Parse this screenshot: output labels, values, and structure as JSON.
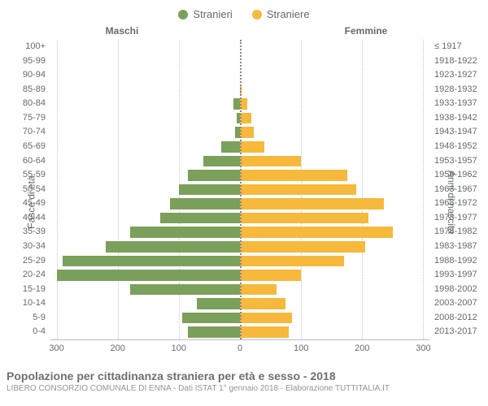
{
  "legend": {
    "male": {
      "label": "Stranieri",
      "color": "#7ba05b"
    },
    "female": {
      "label": "Straniere",
      "color": "#f6b93b"
    }
  },
  "column_headers": {
    "left": "Maschi",
    "right": "Femmine"
  },
  "axis_labels": {
    "left": "Fasce di età",
    "right": "Anni di nascita"
  },
  "caption": {
    "title": "Popolazione per cittadinanza straniera per età e sesso - 2018",
    "subtitle": "LIBERO CONSORZIO COMUNALE DI ENNA - Dati ISTAT 1° gennaio 2018 - Elaborazione TUTTITALIA.IT"
  },
  "chart": {
    "type": "population-pyramid",
    "xmax": 310,
    "xticks": [
      300,
      200,
      100,
      0,
      100,
      200,
      300
    ],
    "xtick_labels": [
      "300",
      "200",
      "100",
      "0",
      "100",
      "200",
      "300"
    ],
    "grid_color": "#c2c6c9",
    "background_color": "#ffffff",
    "text_color": "#666a6d",
    "bar_gap_ratio": 0.22,
    "rows": [
      {
        "age": "100+",
        "birth": "≤ 1917",
        "m": 0,
        "f": 0
      },
      {
        "age": "95-99",
        "birth": "1918-1922",
        "m": 0,
        "f": 0
      },
      {
        "age": "90-94",
        "birth": "1923-1927",
        "m": 0,
        "f": 0
      },
      {
        "age": "85-89",
        "birth": "1928-1932",
        "m": 0,
        "f": 3
      },
      {
        "age": "80-84",
        "birth": "1933-1937",
        "m": 10,
        "f": 12
      },
      {
        "age": "75-79",
        "birth": "1938-1942",
        "m": 5,
        "f": 18
      },
      {
        "age": "70-74",
        "birth": "1943-1947",
        "m": 8,
        "f": 22
      },
      {
        "age": "65-69",
        "birth": "1948-1952",
        "m": 30,
        "f": 40
      },
      {
        "age": "60-64",
        "birth": "1953-1957",
        "m": 60,
        "f": 100
      },
      {
        "age": "55-59",
        "birth": "1958-1962",
        "m": 85,
        "f": 175
      },
      {
        "age": "50-54",
        "birth": "1963-1967",
        "m": 100,
        "f": 190
      },
      {
        "age": "45-49",
        "birth": "1968-1972",
        "m": 115,
        "f": 235
      },
      {
        "age": "40-44",
        "birth": "1973-1977",
        "m": 130,
        "f": 210
      },
      {
        "age": "35-39",
        "birth": "1978-1982",
        "m": 180,
        "f": 250
      },
      {
        "age": "30-34",
        "birth": "1983-1987",
        "m": 220,
        "f": 205
      },
      {
        "age": "25-29",
        "birth": "1988-1992",
        "m": 290,
        "f": 170
      },
      {
        "age": "20-24",
        "birth": "1993-1997",
        "m": 300,
        "f": 100
      },
      {
        "age": "15-19",
        "birth": "1998-2002",
        "m": 180,
        "f": 60
      },
      {
        "age": "10-14",
        "birth": "2003-2007",
        "m": 70,
        "f": 75
      },
      {
        "age": "5-9",
        "birth": "2008-2012",
        "m": 95,
        "f": 85
      },
      {
        "age": "0-4",
        "birth": "2013-2017",
        "m": 85,
        "f": 80
      }
    ]
  }
}
